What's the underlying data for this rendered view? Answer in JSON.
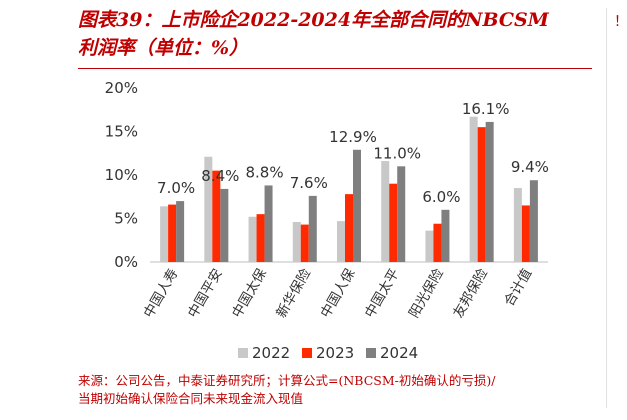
{
  "title": {
    "line1": "图表39：上市险企2022-2024年全部合同的NBCSM",
    "line2": "利润率（单位：%）"
  },
  "source": {
    "line1": "来源：公司公告，中泰证券研究所；计算公式=(NBCSM-初始确认的亏损)/",
    "line2": "当期初始确认保险合同未来现金流入现值"
  },
  "side_fragment": "！",
  "colors": {
    "title": "#c00000",
    "rule": "#c00000",
    "series_2022": "#c8c8c8",
    "series_2023": "#ff2a00",
    "series_2024": "#7f7f7f"
  },
  "chart_data": {
    "type": "bar",
    "categories": [
      "中国人寿",
      "中国平安",
      "中国太保",
      "新华保险",
      "中国人保",
      "中国太平",
      "阳光保险",
      "友邦保险",
      "合计值"
    ],
    "series": [
      {
        "name": "2022",
        "values": [
          6.4,
          12.1,
          5.2,
          4.6,
          4.7,
          11.6,
          3.6,
          16.7,
          8.5
        ]
      },
      {
        "name": "2023",
        "values": [
          6.6,
          10.5,
          5.5,
          4.3,
          7.8,
          9.0,
          4.4,
          15.5,
          6.5
        ]
      },
      {
        "name": "2024",
        "values": [
          7.0,
          8.4,
          8.8,
          7.6,
          12.9,
          11.0,
          6.0,
          16.1,
          9.4
        ]
      }
    ],
    "data_labels": [
      "7.0%",
      "8.4%",
      "8.8%",
      "7.6%",
      "12.9%",
      "11.0%",
      "6.0%",
      "16.1%",
      "9.4%"
    ],
    "y_ticks": [
      "0%",
      "5%",
      "10%",
      "15%",
      "20%"
    ],
    "ylim": [
      0,
      20
    ],
    "legend": [
      "2022",
      "2023",
      "2024"
    ],
    "legend_position": "bottom",
    "grid": false
  }
}
